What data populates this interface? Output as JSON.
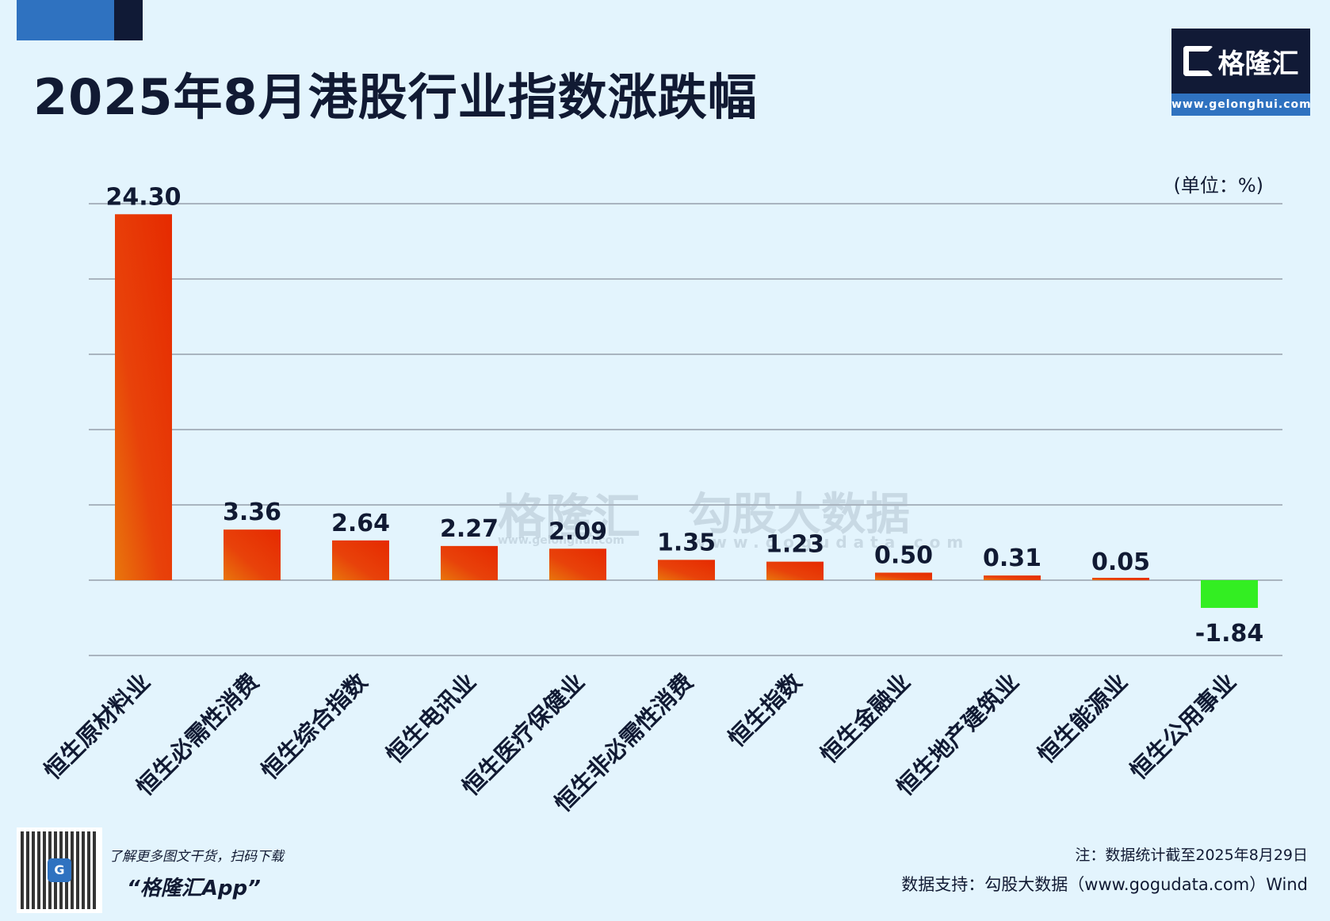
{
  "header": {
    "title": "2025年8月港股行业指数涨跌幅",
    "logo_text": "格隆汇",
    "logo_url": "www.gelonghui.com"
  },
  "unit_label": "(单位：%)",
  "watermark": {
    "brand": "格隆汇",
    "brand_url": "www.gelonghui.com",
    "partner": "勾股大数据",
    "partner_url": "www.gogudata.com"
  },
  "footer": {
    "promo_line": "了解更多图文干货，扫码下载",
    "app_name": "“格隆汇App”",
    "note": "注：数据统计截至2025年8月29日",
    "source": "数据支持：勾股大数据（www.gogudata.com）Wind"
  },
  "chart_data": {
    "type": "bar",
    "title": "2025年8月港股行业指数涨跌幅",
    "ylabel": "(单位：%)",
    "categories": [
      "恒生原材料业",
      "恒生必需性消费",
      "恒生综合指数",
      "恒生电讯业",
      "恒生医疗保健业",
      "恒生非必需性消费",
      "恒生指数",
      "恒生金融业",
      "恒生地产建筑业",
      "恒生能源业",
      "恒生公用事业"
    ],
    "values": [
      24.3,
      3.36,
      2.64,
      2.27,
      2.09,
      1.35,
      1.23,
      0.5,
      0.31,
      0.05,
      -1.84
    ],
    "data_labels": [
      "24.30",
      "3.36",
      "2.64",
      "2.27",
      "2.09",
      "1.35",
      "1.23",
      "0.50",
      "0.31",
      "0.05",
      "-1.84"
    ],
    "ylim": [
      -5,
      25
    ],
    "gridlines": [
      -5,
      0,
      5,
      10,
      15,
      20,
      25
    ],
    "grid": true,
    "colors": {
      "positive_top": "#e62a00",
      "positive_bottom": "#e8700a",
      "negative": "#33ee22",
      "grid": "#a9b4bf"
    }
  }
}
